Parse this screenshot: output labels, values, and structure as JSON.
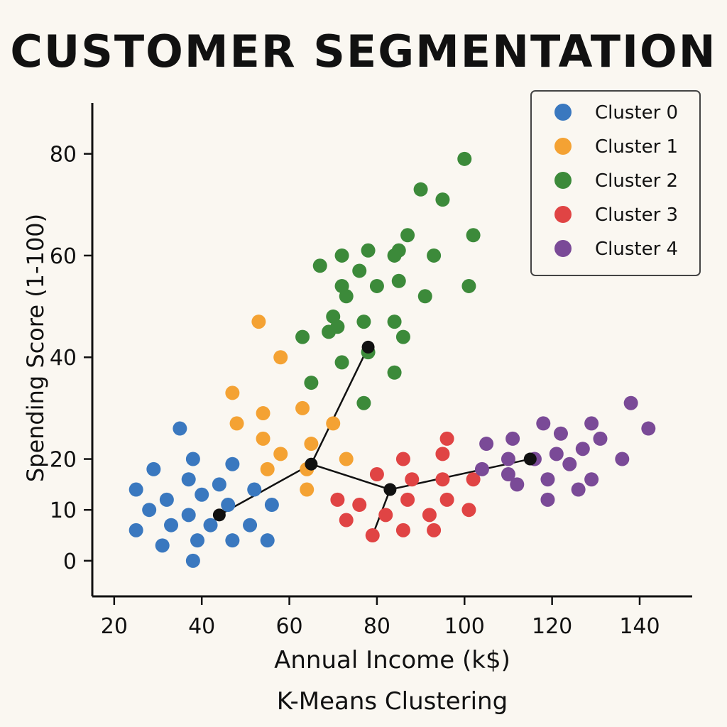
{
  "chart_data": {
    "type": "scatter",
    "title": "CUSTOMER SEGMENTATION",
    "subtitle": "K-Means Clustering",
    "xlabel": "Annual Income (k$)",
    "ylabel": "Spending Score (1-100)",
    "xlim": [
      15,
      152
    ],
    "ylim": [
      -7,
      90
    ],
    "xticks": [
      20,
      40,
      60,
      80,
      100,
      120,
      140
    ],
    "yticks": [
      0,
      10,
      20,
      40,
      60,
      80
    ],
    "legend_position": "top-right",
    "grid": false,
    "series": [
      {
        "name": "Cluster 0",
        "color": "#3a78bf",
        "points": [
          [
            25,
            14
          ],
          [
            25,
            6
          ],
          [
            28,
            10
          ],
          [
            29,
            18
          ],
          [
            31,
            3
          ],
          [
            32,
            12
          ],
          [
            33,
            7
          ],
          [
            35,
            26
          ],
          [
            37,
            16
          ],
          [
            37,
            9
          ],
          [
            38,
            20
          ],
          [
            38,
            0
          ],
          [
            39,
            4
          ],
          [
            40,
            13
          ],
          [
            42,
            7
          ],
          [
            44,
            15
          ],
          [
            46,
            11
          ],
          [
            47,
            19
          ],
          [
            47,
            4
          ],
          [
            51,
            7
          ],
          [
            52,
            14
          ],
          [
            55,
            4
          ],
          [
            56,
            11
          ]
        ]
      },
      {
        "name": "Cluster 1",
        "color": "#f4a233",
        "points": [
          [
            47,
            33
          ],
          [
            48,
            27
          ],
          [
            53,
            47
          ],
          [
            54,
            29
          ],
          [
            54,
            24
          ],
          [
            55,
            18
          ],
          [
            58,
            21
          ],
          [
            58,
            40
          ],
          [
            63,
            30
          ],
          [
            64,
            18
          ],
          [
            64,
            14
          ],
          [
            65,
            23
          ],
          [
            70,
            27
          ],
          [
            73,
            20
          ]
        ]
      },
      {
        "name": "Cluster 2",
        "color": "#3c8a3a",
        "points": [
          [
            63,
            44
          ],
          [
            65,
            35
          ],
          [
            67,
            58
          ],
          [
            69,
            45
          ],
          [
            70,
            48
          ],
          [
            71,
            46
          ],
          [
            72,
            60
          ],
          [
            72,
            39
          ],
          [
            72,
            54
          ],
          [
            73,
            52
          ],
          [
            76,
            57
          ],
          [
            77,
            47
          ],
          [
            77,
            31
          ],
          [
            78,
            61
          ],
          [
            78,
            41
          ],
          [
            80,
            54
          ],
          [
            84,
            47
          ],
          [
            84,
            60
          ],
          [
            84,
            37
          ],
          [
            85,
            61
          ],
          [
            85,
            55
          ],
          [
            86,
            44
          ],
          [
            87,
            64
          ],
          [
            90,
            73
          ],
          [
            91,
            52
          ],
          [
            93,
            60
          ],
          [
            95,
            71
          ],
          [
            100,
            79
          ],
          [
            101,
            54
          ],
          [
            102,
            64
          ]
        ]
      },
      {
        "name": "Cluster 3",
        "color": "#e04444",
        "points": [
          [
            71,
            12
          ],
          [
            73,
            8
          ],
          [
            76,
            11
          ],
          [
            79,
            5
          ],
          [
            80,
            17
          ],
          [
            82,
            9
          ],
          [
            86,
            6
          ],
          [
            86,
            20
          ],
          [
            87,
            12
          ],
          [
            88,
            16
          ],
          [
            92,
            9
          ],
          [
            93,
            6
          ],
          [
            95,
            21
          ],
          [
            95,
            16
          ],
          [
            96,
            12
          ],
          [
            96,
            24
          ],
          [
            101,
            10
          ],
          [
            102,
            16
          ]
        ]
      },
      {
        "name": "Cluster 4",
        "color": "#7a4a97",
        "points": [
          [
            104,
            18
          ],
          [
            105,
            23
          ],
          [
            110,
            17
          ],
          [
            110,
            20
          ],
          [
            111,
            24
          ],
          [
            112,
            15
          ],
          [
            116,
            20
          ],
          [
            118,
            27
          ],
          [
            119,
            16
          ],
          [
            119,
            12
          ],
          [
            121,
            21
          ],
          [
            122,
            25
          ],
          [
            124,
            19
          ],
          [
            126,
            14
          ],
          [
            127,
            22
          ],
          [
            129,
            27
          ],
          [
            129,
            16
          ],
          [
            131,
            24
          ],
          [
            136,
            20
          ],
          [
            138,
            31
          ],
          [
            142,
            26
          ]
        ]
      }
    ],
    "centroids": {
      "color": "#111111",
      "points": [
        [
          44,
          9
        ],
        [
          65,
          19
        ],
        [
          78,
          42
        ],
        [
          83,
          14
        ],
        [
          115,
          20
        ]
      ],
      "segments": [
        [
          [
            44,
            9
          ],
          [
            65,
            19
          ]
        ],
        [
          [
            65,
            19
          ],
          [
            78,
            42
          ]
        ],
        [
          [
            65,
            19
          ],
          [
            83,
            14
          ]
        ],
        [
          [
            83,
            14
          ],
          [
            115,
            20
          ]
        ],
        [
          [
            83,
            14
          ],
          [
            79,
            5
          ]
        ]
      ]
    }
  }
}
